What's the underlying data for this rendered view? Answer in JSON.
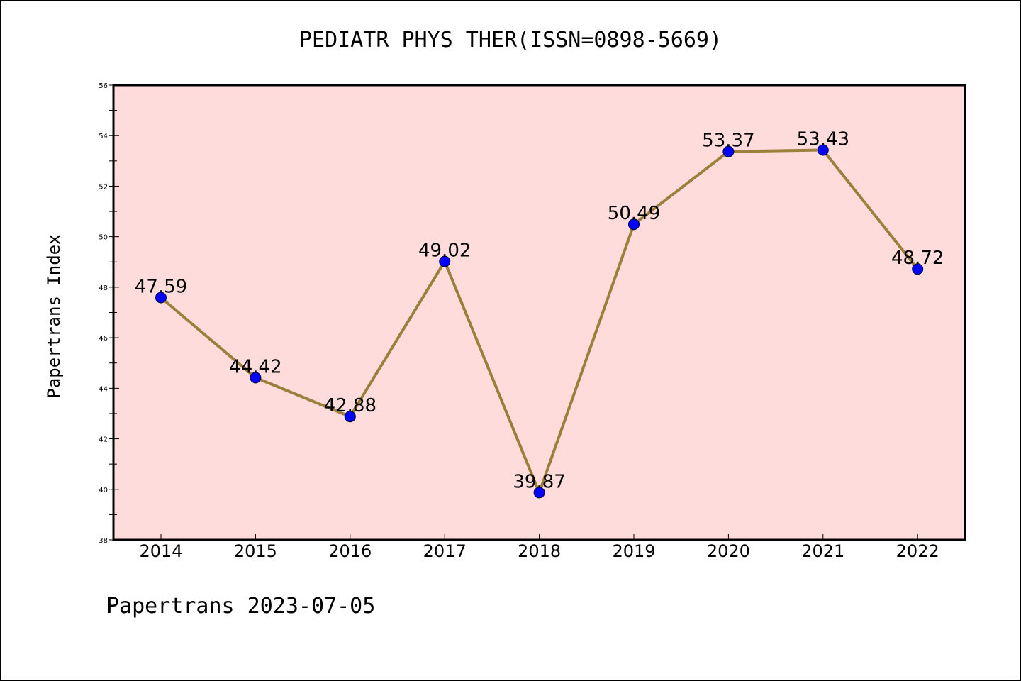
{
  "chart_data": {
    "type": "line",
    "title": "PEDIATR PHYS THER(ISSN=0898-5669)",
    "xlabel": "",
    "ylabel": "Papertrans Index",
    "footer": "Papertrans 2023-07-05",
    "categories": [
      "2014",
      "2015",
      "2016",
      "2017",
      "2018",
      "2019",
      "2020",
      "2021",
      "2022"
    ],
    "series": [
      {
        "values": [
          47.59,
          44.42,
          42.88,
          49.02,
          39.87,
          50.49,
          53.37,
          53.43,
          48.72
        ],
        "labels": [
          "47.59",
          "44.42",
          "42.88",
          "49.02",
          "39.87",
          "50.49",
          "53.37",
          "53.43",
          "48.72"
        ]
      }
    ],
    "ylim": [
      38,
      56
    ],
    "yticks": [
      "38",
      "40",
      "42",
      "44",
      "46",
      "48",
      "50",
      "52",
      "54",
      "56"
    ],
    "grid": false,
    "colors": {
      "plot_background": "#ffdcdc",
      "line": "#9b7f3a",
      "marker": "#0000ff"
    }
  }
}
